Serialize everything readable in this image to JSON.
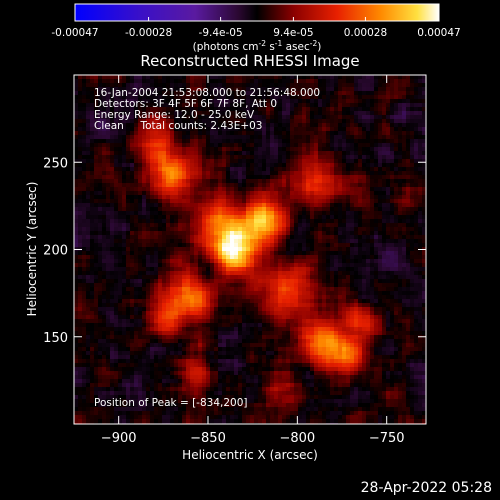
{
  "title": "Reconstructed RHESSI Image",
  "info": {
    "line1": "16-Jan-2004 21:53:08.000 to 21:56:48.000",
    "line2": "Detectors: 3F 4F 5F 6F 7F 8F, Att 0",
    "line3": "Energy Range: 12.0 - 25.0 keV",
    "line4": "Clean     Total counts: 2.43E+03"
  },
  "peak_label": "Position of Peak = [-834,200]",
  "footer_date": "28-Apr-2022 05:28",
  "colorbar": {
    "ticks": [
      "-0.00047",
      "-0.00028",
      "-9.4e-05",
      "9.4e-05",
      "0.00028",
      "0.00047"
    ],
    "tick_values": [
      -0.00047,
      -0.00028,
      -9.4e-05,
      9.4e-05,
      0.00028,
      0.00047
    ],
    "range": [
      -0.00047,
      0.00047
    ],
    "unit_label": "(photons cm",
    "unit_exp1": "-2",
    "unit_mid1": " s",
    "unit_exp2": "-1",
    "unit_mid2": " asec",
    "unit_exp3": "-2",
    "unit_end": ")"
  },
  "colors": {
    "background": "#000000",
    "colormap_low": "#0000ff",
    "colormap_mid": "#000000",
    "colormap_high": "#ffffff"
  },
  "chart_data": {
    "type": "heatmap",
    "title": "Reconstructed RHESSI Image",
    "xlabel": "Heliocentric X (arcsec)",
    "ylabel": "Heliocentric Y (arcsec)",
    "xlim": [
      -925,
      -728
    ],
    "ylim": [
      100,
      300
    ],
    "x_ticks": [
      -900,
      -850,
      -800,
      -750
    ],
    "y_ticks": [
      150,
      200,
      250
    ],
    "x_tick_labels": [
      "−900",
      "−850",
      "−800",
      "−750"
    ],
    "y_tick_labels": [
      "150",
      "200",
      "250"
    ],
    "peak": [
      -834,
      200
    ],
    "value_range": [
      -0.00047,
      0.00047
    ],
    "sources": [
      {
        "x": -834,
        "y": 200,
        "sigma": 9,
        "amp": 1.0
      },
      {
        "x": -818,
        "y": 218,
        "sigma": 8,
        "amp": 0.85
      },
      {
        "x": -845,
        "y": 215,
        "sigma": 12,
        "amp": 0.55
      },
      {
        "x": -870,
        "y": 244,
        "sigma": 9,
        "amp": 0.7
      },
      {
        "x": -880,
        "y": 262,
        "sigma": 7,
        "amp": 0.55
      },
      {
        "x": -860,
        "y": 172,
        "sigma": 9,
        "amp": 0.75
      },
      {
        "x": -875,
        "y": 160,
        "sigma": 7,
        "amp": 0.55
      },
      {
        "x": -805,
        "y": 178,
        "sigma": 11,
        "amp": 0.6
      },
      {
        "x": -790,
        "y": 150,
        "sigma": 9,
        "amp": 0.5
      },
      {
        "x": -775,
        "y": 140,
        "sigma": 9,
        "amp": 0.7
      },
      {
        "x": -765,
        "y": 160,
        "sigma": 7,
        "amp": 0.45
      },
      {
        "x": -790,
        "y": 240,
        "sigma": 9,
        "amp": 0.55
      },
      {
        "x": -855,
        "y": 128,
        "sigma": 8,
        "amp": 0.4
      },
      {
        "x": -810,
        "y": 120,
        "sigma": 7,
        "amp": 0.35
      }
    ]
  }
}
